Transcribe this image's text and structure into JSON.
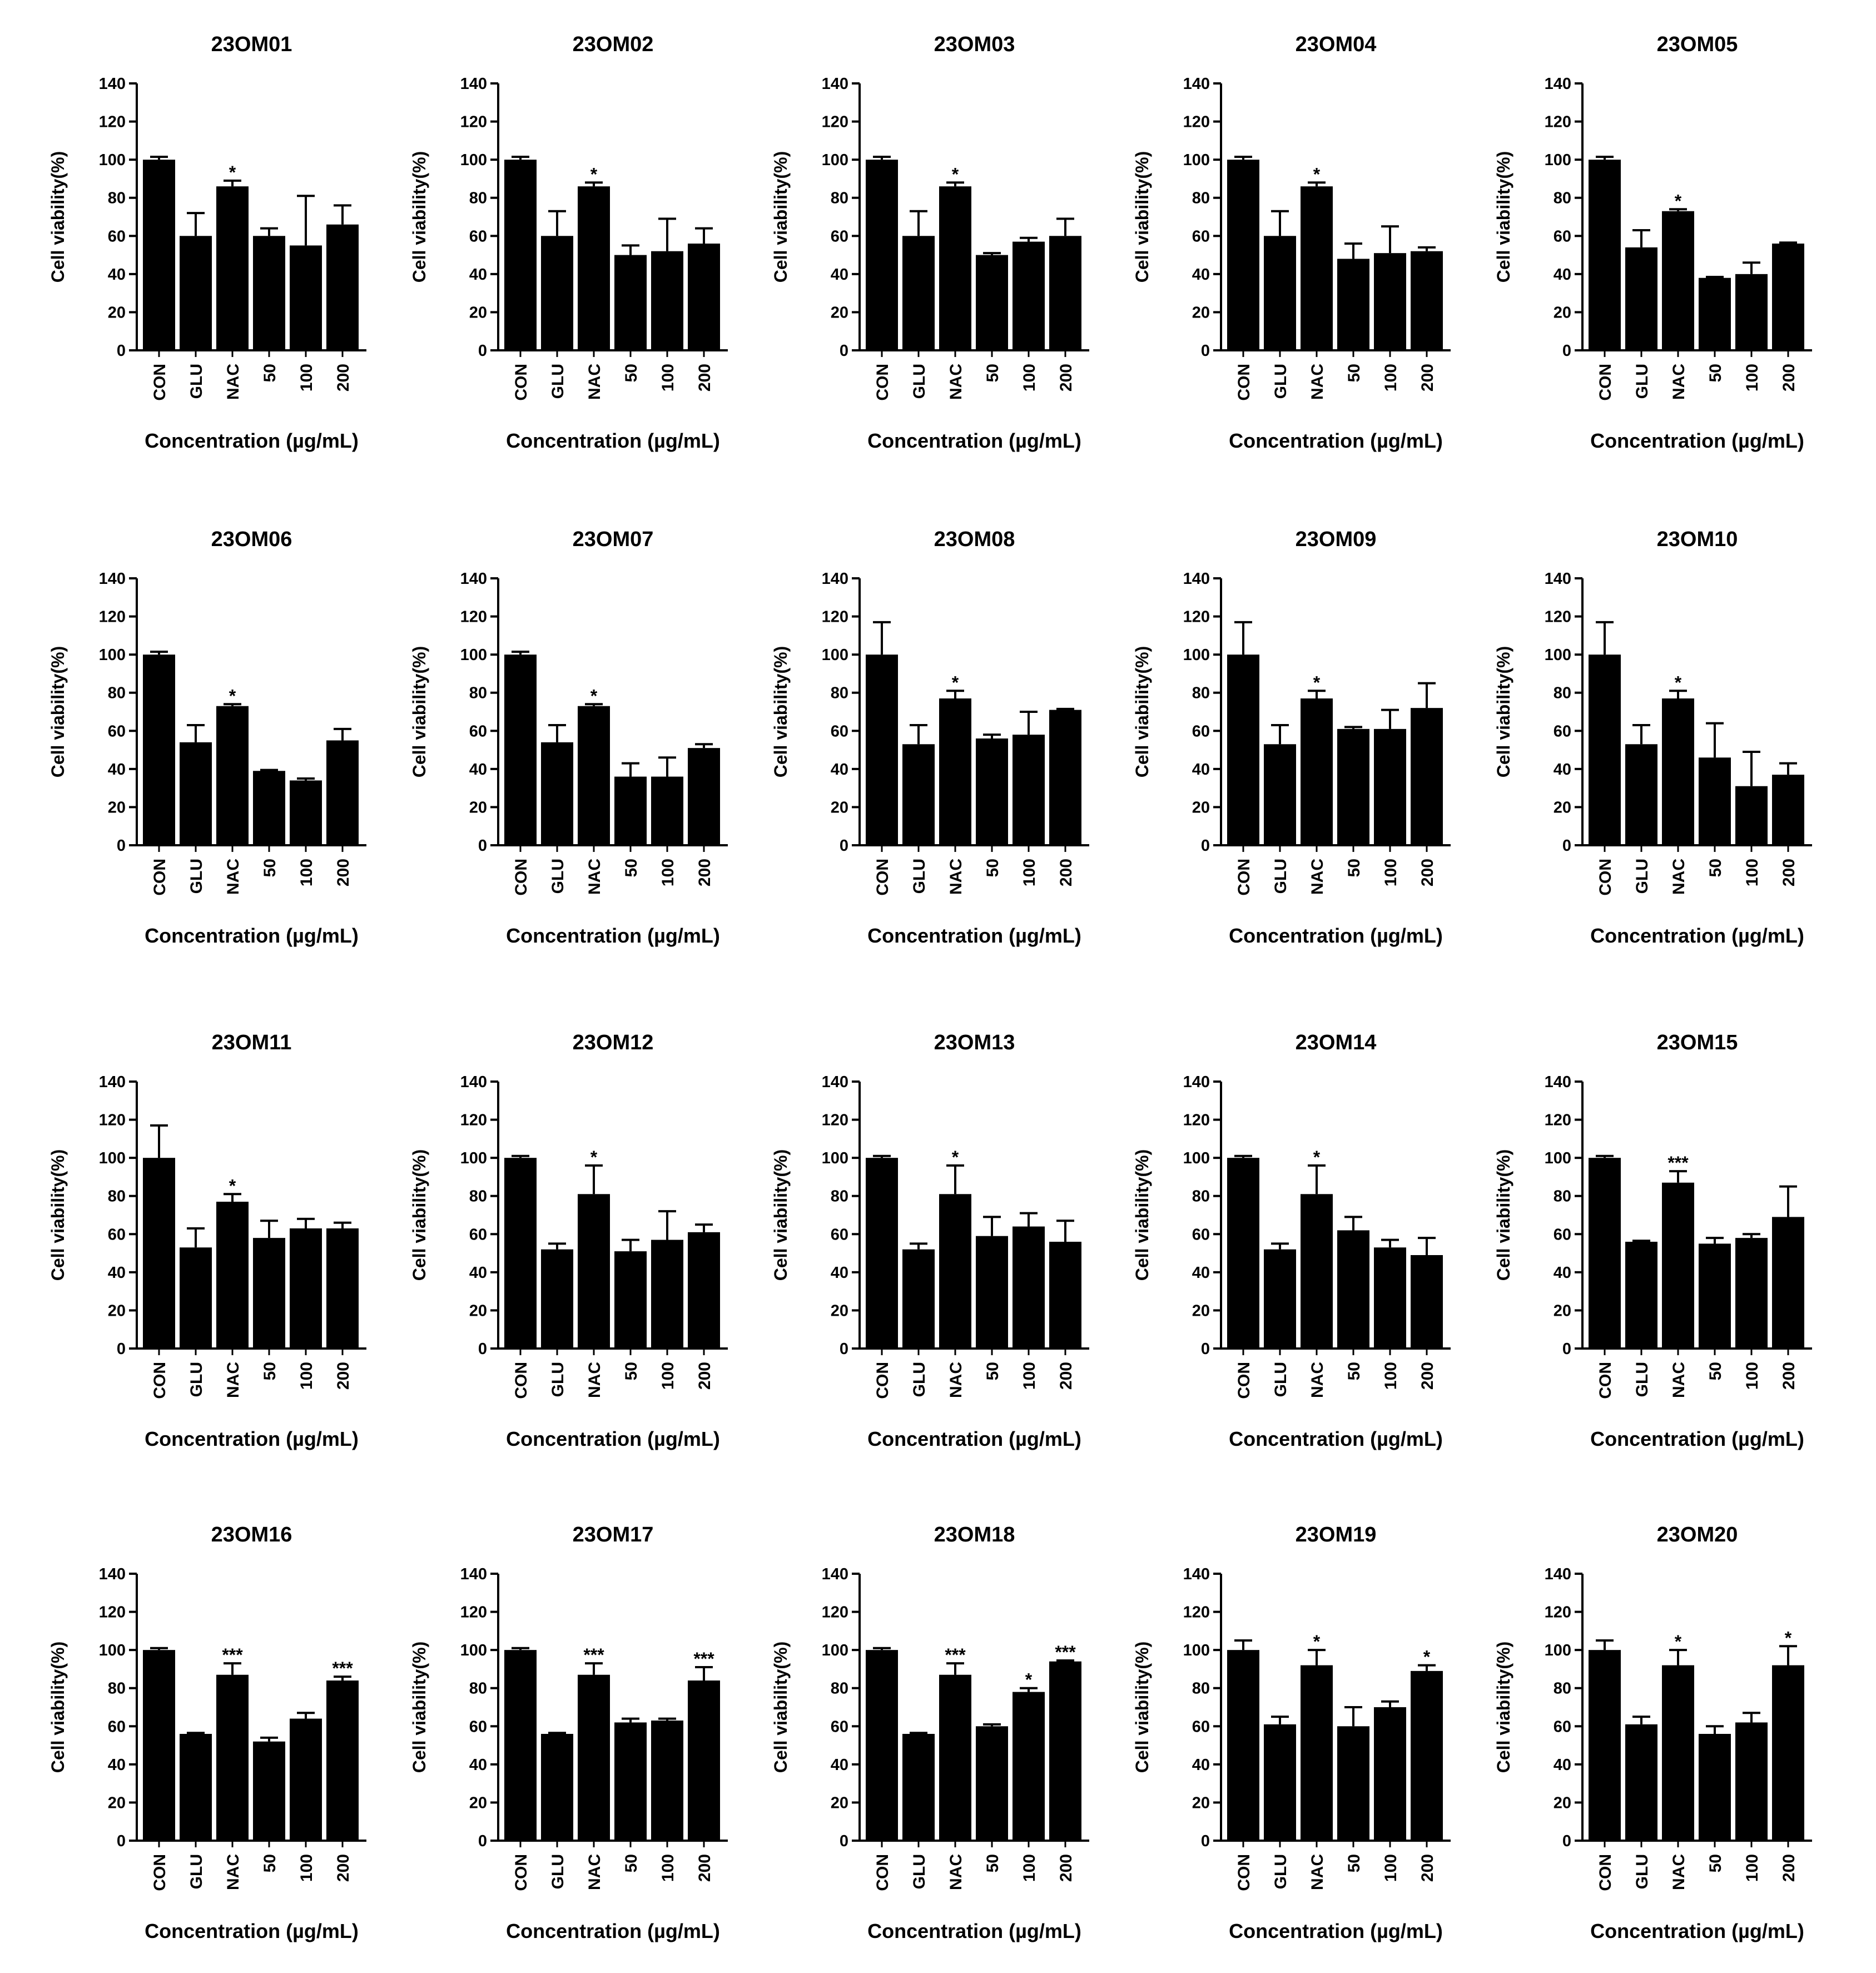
{
  "figure": {
    "title": "",
    "color": "#000000"
  },
  "chart_data": [
    {
      "type": "bar",
      "title": "23OM01",
      "xlabel": "Concentration (µg/mL)",
      "ylabel": "Cell viability(%)",
      "ylim": [
        0,
        140
      ],
      "yticks": [
        0,
        20,
        40,
        60,
        80,
        100,
        120,
        140
      ],
      "categories": [
        "CON",
        "GLU",
        "NAC",
        "50",
        "100",
        "200"
      ],
      "values": [
        100,
        60,
        86,
        60,
        55,
        66
      ],
      "errors": [
        1.5,
        12,
        3,
        4,
        26,
        10
      ],
      "significance": [
        "",
        "",
        "*",
        "",
        "",
        ""
      ],
      "grid": false
    },
    {
      "type": "bar",
      "title": "23OM02",
      "xlabel": "Concentration (µg/mL)",
      "ylabel": "Cell viability(%)",
      "ylim": [
        0,
        140
      ],
      "yticks": [
        0,
        20,
        40,
        60,
        80,
        100,
        120,
        140
      ],
      "categories": [
        "CON",
        "GLU",
        "NAC",
        "50",
        "100",
        "200"
      ],
      "values": [
        100,
        60,
        86,
        50,
        52,
        56
      ],
      "errors": [
        1.5,
        13,
        2,
        5,
        17,
        8
      ],
      "significance": [
        "",
        "",
        "*",
        "",
        "",
        ""
      ],
      "grid": false
    },
    {
      "type": "bar",
      "title": "23OM03",
      "xlabel": "Concentration (µg/mL)",
      "ylabel": "Cell viability(%)",
      "ylim": [
        0,
        140
      ],
      "yticks": [
        0,
        20,
        40,
        60,
        80,
        100,
        120,
        140
      ],
      "categories": [
        "CON",
        "GLU",
        "NAC",
        "50",
        "100",
        "200"
      ],
      "values": [
        100,
        60,
        86,
        50,
        57,
        60
      ],
      "errors": [
        1.5,
        13,
        2,
        1,
        2,
        9
      ],
      "significance": [
        "",
        "",
        "*",
        "",
        "",
        ""
      ],
      "grid": false
    },
    {
      "type": "bar",
      "title": "23OM04",
      "xlabel": "Concentration (µg/mL)",
      "ylabel": "Cell viability(%)",
      "ylim": [
        0,
        140
      ],
      "yticks": [
        0,
        20,
        40,
        60,
        80,
        100,
        120,
        140
      ],
      "categories": [
        "CON",
        "GLU",
        "NAC",
        "50",
        "100",
        "200"
      ],
      "values": [
        100,
        60,
        86,
        48,
        51,
        52
      ],
      "errors": [
        1.5,
        13,
        2,
        8,
        14,
        2
      ],
      "significance": [
        "",
        "",
        "*",
        "",
        "",
        ""
      ],
      "grid": false
    },
    {
      "type": "bar",
      "title": "23OM05",
      "xlabel": "Concentration (µg/mL)",
      "ylabel": "Cell viability(%)",
      "ylim": [
        0,
        140
      ],
      "yticks": [
        0,
        20,
        40,
        60,
        80,
        100,
        120,
        140
      ],
      "categories": [
        "CON",
        "GLU",
        "NAC",
        "50",
        "100",
        "200"
      ],
      "values": [
        100,
        54,
        73,
        38,
        40,
        56
      ],
      "errors": [
        1.5,
        9,
        1,
        0.5,
        6,
        0.5
      ],
      "significance": [
        "",
        "",
        "*",
        "",
        "",
        ""
      ],
      "grid": false
    },
    {
      "type": "bar",
      "title": "23OM06",
      "xlabel": "Concentration (µg/mL)",
      "ylabel": "Cell viability(%)",
      "ylim": [
        0,
        140
      ],
      "yticks": [
        0,
        20,
        40,
        60,
        80,
        100,
        120,
        140
      ],
      "categories": [
        "CON",
        "GLU",
        "NAC",
        "50",
        "100",
        "200"
      ],
      "values": [
        100,
        54,
        73,
        39,
        34,
        55
      ],
      "errors": [
        1.5,
        9,
        1,
        0.5,
        1,
        6
      ],
      "significance": [
        "",
        "",
        "*",
        "",
        "",
        ""
      ],
      "grid": false
    },
    {
      "type": "bar",
      "title": "23OM07",
      "xlabel": "Concentration (µg/mL)",
      "ylabel": "Cell viability(%)",
      "ylim": [
        0,
        140
      ],
      "yticks": [
        0,
        20,
        40,
        60,
        80,
        100,
        120,
        140
      ],
      "categories": [
        "CON",
        "GLU",
        "NAC",
        "50",
        "100",
        "200"
      ],
      "values": [
        100,
        54,
        73,
        36,
        36,
        51
      ],
      "errors": [
        1.5,
        9,
        1,
        7,
        10,
        2
      ],
      "significance": [
        "",
        "",
        "*",
        "",
        "",
        ""
      ],
      "grid": false
    },
    {
      "type": "bar",
      "title": "23OM08",
      "xlabel": "Concentration (µg/mL)",
      "ylabel": "Cell viability(%)",
      "ylim": [
        0,
        140
      ],
      "yticks": [
        0,
        20,
        40,
        60,
        80,
        100,
        120,
        140
      ],
      "categories": [
        "CON",
        "GLU",
        "NAC",
        "50",
        "100",
        "200"
      ],
      "values": [
        100,
        53,
        77,
        56,
        58,
        71
      ],
      "errors": [
        17,
        10,
        4,
        2,
        12,
        0.5
      ],
      "significance": [
        "",
        "",
        "*",
        "",
        "",
        ""
      ],
      "grid": false
    },
    {
      "type": "bar",
      "title": "23OM09",
      "xlabel": "Concentration (µg/mL)",
      "ylabel": "Cell viability(%)",
      "ylim": [
        0,
        140
      ],
      "yticks": [
        0,
        20,
        40,
        60,
        80,
        100,
        120,
        140
      ],
      "categories": [
        "CON",
        "GLU",
        "NAC",
        "50",
        "100",
        "200"
      ],
      "values": [
        100,
        53,
        77,
        61,
        61,
        72
      ],
      "errors": [
        17,
        10,
        4,
        1,
        10,
        13
      ],
      "significance": [
        "",
        "",
        "*",
        "",
        "",
        ""
      ],
      "grid": false
    },
    {
      "type": "bar",
      "title": "23OM10",
      "xlabel": "Concentration (µg/mL)",
      "ylabel": "Cell viability(%)",
      "ylim": [
        0,
        140
      ],
      "yticks": [
        0,
        20,
        40,
        60,
        80,
        100,
        120,
        140
      ],
      "categories": [
        "CON",
        "GLU",
        "NAC",
        "50",
        "100",
        "200"
      ],
      "values": [
        100,
        53,
        77,
        46,
        31,
        37
      ],
      "errors": [
        17,
        10,
        4,
        18,
        18,
        6
      ],
      "significance": [
        "",
        "",
        "*",
        "",
        "",
        ""
      ],
      "grid": false
    },
    {
      "type": "bar",
      "title": "23OM11",
      "xlabel": "Concentration (µg/mL)",
      "ylabel": "Cell viability(%)",
      "ylim": [
        0,
        140
      ],
      "yticks": [
        0,
        20,
        40,
        60,
        80,
        100,
        120,
        140
      ],
      "categories": [
        "CON",
        "GLU",
        "NAC",
        "50",
        "100",
        "200"
      ],
      "values": [
        100,
        53,
        77,
        58,
        63,
        63
      ],
      "errors": [
        17,
        10,
        4,
        9,
        5,
        3
      ],
      "significance": [
        "",
        "",
        "*",
        "",
        "",
        ""
      ],
      "grid": false
    },
    {
      "type": "bar",
      "title": "23OM12",
      "xlabel": "Concentration (µg/mL)",
      "ylabel": "Cell viability(%)",
      "ylim": [
        0,
        140
      ],
      "yticks": [
        0,
        20,
        40,
        60,
        80,
        100,
        120,
        140
      ],
      "categories": [
        "CON",
        "GLU",
        "NAC",
        "50",
        "100",
        "200"
      ],
      "values": [
        100,
        52,
        81,
        51,
        57,
        61
      ],
      "errors": [
        1,
        3,
        15,
        6,
        15,
        4
      ],
      "significance": [
        "",
        "",
        "*",
        "",
        "",
        ""
      ],
      "grid": false
    },
    {
      "type": "bar",
      "title": "23OM13",
      "xlabel": "Concentration (µg/mL)",
      "ylabel": "Cell viability(%)",
      "ylim": [
        0,
        140
      ],
      "yticks": [
        0,
        20,
        40,
        60,
        80,
        100,
        120,
        140
      ],
      "categories": [
        "CON",
        "GLU",
        "NAC",
        "50",
        "100",
        "200"
      ],
      "values": [
        100,
        52,
        81,
        59,
        64,
        56
      ],
      "errors": [
        1,
        3,
        15,
        10,
        7,
        11
      ],
      "significance": [
        "",
        "",
        "*",
        "",
        "",
        ""
      ],
      "grid": false
    },
    {
      "type": "bar",
      "title": "23OM14",
      "xlabel": "Concentration (µg/mL)",
      "ylabel": "Cell viability(%)",
      "ylim": [
        0,
        140
      ],
      "yticks": [
        0,
        20,
        40,
        60,
        80,
        100,
        120,
        140
      ],
      "categories": [
        "CON",
        "GLU",
        "NAC",
        "50",
        "100",
        "200"
      ],
      "values": [
        100,
        52,
        81,
        62,
        53,
        49
      ],
      "errors": [
        1,
        3,
        15,
        7,
        4,
        9
      ],
      "significance": [
        "",
        "",
        "*",
        "",
        "",
        ""
      ],
      "grid": false
    },
    {
      "type": "bar",
      "title": "23OM15",
      "xlabel": "Concentration (µg/mL)",
      "ylabel": "Cell viability(%)",
      "ylim": [
        0,
        140
      ],
      "yticks": [
        0,
        20,
        40,
        60,
        80,
        100,
        120,
        140
      ],
      "categories": [
        "CON",
        "GLU",
        "NAC",
        "50",
        "100",
        "200"
      ],
      "values": [
        100,
        56,
        87,
        55,
        58,
        69
      ],
      "errors": [
        1,
        0.5,
        6,
        3,
        2,
        16
      ],
      "significance": [
        "",
        "",
        "***",
        "",
        "",
        ""
      ],
      "grid": false
    },
    {
      "type": "bar",
      "title": "23OM16",
      "xlabel": "Concentration (µg/mL)",
      "ylabel": "Cell viability(%)",
      "ylim": [
        0,
        140
      ],
      "yticks": [
        0,
        20,
        40,
        60,
        80,
        100,
        120,
        140
      ],
      "categories": [
        "CON",
        "GLU",
        "NAC",
        "50",
        "100",
        "200"
      ],
      "values": [
        100,
        56,
        87,
        52,
        64,
        84
      ],
      "errors": [
        1,
        0.5,
        6,
        2,
        3,
        2
      ],
      "significance": [
        "",
        "",
        "***",
        "",
        "",
        "***"
      ],
      "grid": false
    },
    {
      "type": "bar",
      "title": "23OM17",
      "xlabel": "Concentration (µg/mL)",
      "ylabel": "Cell viability(%)",
      "ylim": [
        0,
        140
      ],
      "yticks": [
        0,
        20,
        40,
        60,
        80,
        100,
        120,
        140
      ],
      "categories": [
        "CON",
        "GLU",
        "NAC",
        "50",
        "100",
        "200"
      ],
      "values": [
        100,
        56,
        87,
        62,
        63,
        84
      ],
      "errors": [
        1,
        0.5,
        6,
        2,
        1,
        7
      ],
      "significance": [
        "",
        "",
        "***",
        "",
        "",
        "***"
      ],
      "grid": false
    },
    {
      "type": "bar",
      "title": "23OM18",
      "xlabel": "Concentration (µg/mL)",
      "ylabel": "Cell viability(%)",
      "ylim": [
        0,
        140
      ],
      "yticks": [
        0,
        20,
        40,
        60,
        80,
        100,
        120,
        140
      ],
      "categories": [
        "CON",
        "GLU",
        "NAC",
        "50",
        "100",
        "200"
      ],
      "values": [
        100,
        56,
        87,
        60,
        78,
        94
      ],
      "errors": [
        1,
        0.5,
        6,
        1,
        2,
        0.5
      ],
      "significance": [
        "",
        "",
        "***",
        "",
        "*",
        "***"
      ],
      "grid": false
    },
    {
      "type": "bar",
      "title": "23OM19",
      "xlabel": "Concentration (µg/mL)",
      "ylabel": "Cell viability(%)",
      "ylim": [
        0,
        140
      ],
      "yticks": [
        0,
        20,
        40,
        60,
        80,
        100,
        120,
        140
      ],
      "categories": [
        "CON",
        "GLU",
        "NAC",
        "50",
        "100",
        "200"
      ],
      "values": [
        100,
        61,
        92,
        60,
        70,
        89
      ],
      "errors": [
        5,
        4,
        8,
        10,
        3,
        3
      ],
      "significance": [
        "",
        "",
        "*",
        "",
        "",
        "*"
      ],
      "grid": false
    },
    {
      "type": "bar",
      "title": "23OM20",
      "xlabel": "Concentration (µg/mL)",
      "ylabel": "Cell viability(%)",
      "ylim": [
        0,
        140
      ],
      "yticks": [
        0,
        20,
        40,
        60,
        80,
        100,
        120,
        140
      ],
      "categories": [
        "CON",
        "GLU",
        "NAC",
        "50",
        "100",
        "200"
      ],
      "values": [
        100,
        61,
        92,
        56,
        62,
        92
      ],
      "errors": [
        5,
        4,
        8,
        4,
        5,
        10
      ],
      "significance": [
        "",
        "",
        "*",
        "",
        "",
        "*"
      ],
      "grid": false
    }
  ]
}
